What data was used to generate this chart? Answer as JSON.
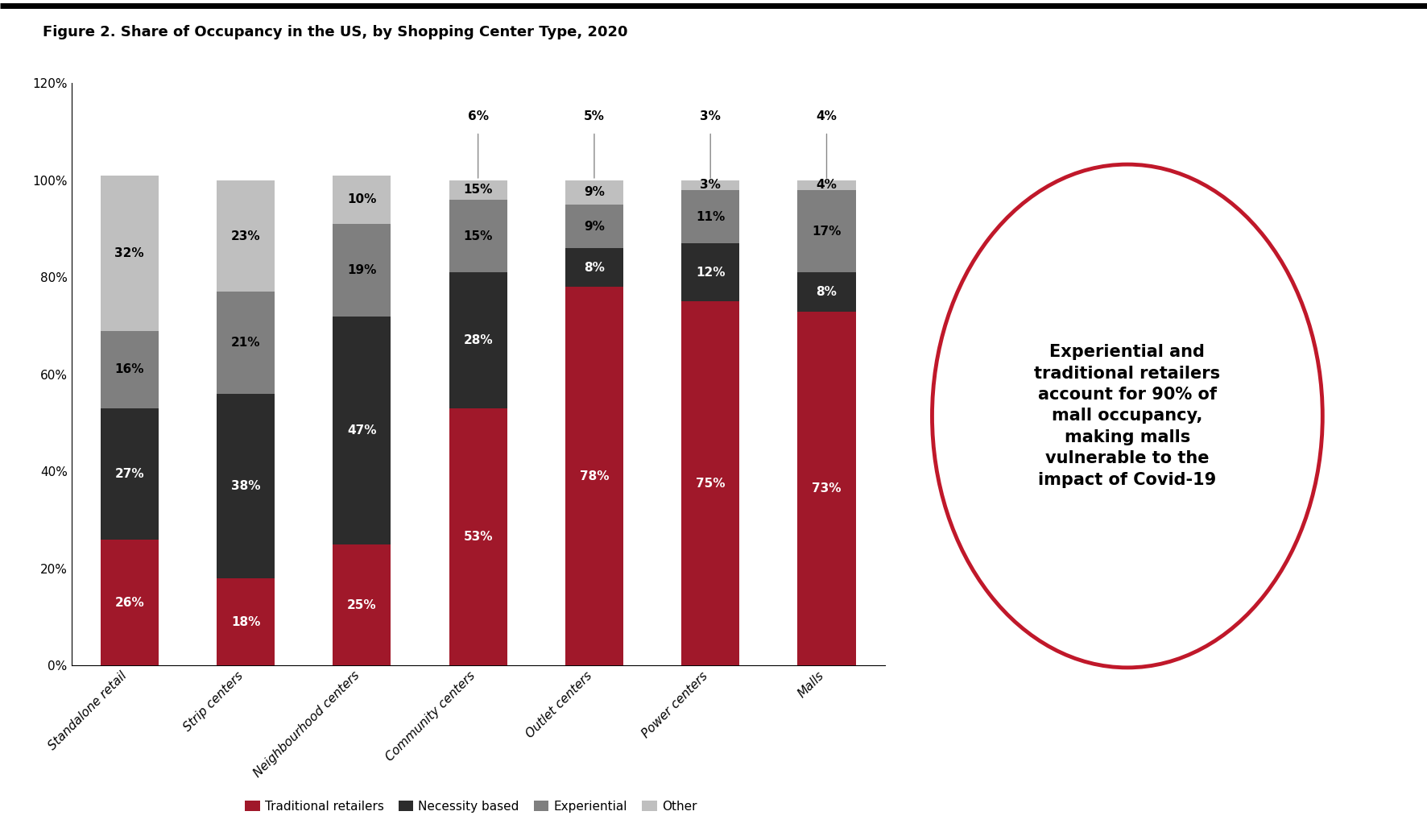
{
  "title": "Figure 2. Share of Occupancy in the US, by Shopping Center Type, 2020",
  "categories": [
    "Standalone retail",
    "Strip centers",
    "Neighbourhood centers",
    "Community centers",
    "Outlet centers",
    "Power centers",
    "Malls"
  ],
  "traditional": [
    26,
    18,
    25,
    53,
    78,
    75,
    73
  ],
  "necessity": [
    27,
    38,
    47,
    28,
    8,
    12,
    8
  ],
  "experiential": [
    16,
    21,
    19,
    15,
    9,
    11,
    17
  ],
  "other": [
    32,
    23,
    10,
    4,
    5,
    2,
    2
  ],
  "other_label": [
    32,
    23,
    10,
    15,
    9,
    3,
    4
  ],
  "above_100": [
    0,
    0,
    0,
    6,
    5,
    3,
    4
  ],
  "colors": {
    "traditional": "#A0182A",
    "necessity": "#2C2C2C",
    "experiential": "#7F7F7F",
    "other": "#BFBFBF"
  },
  "legend_labels": [
    "Traditional retailers",
    "Necessity based",
    "Experiential",
    "Other"
  ],
  "annotation_text": "Experiential and\ntraditional retailers\naccount for 90% of\nmall occupancy,\nmaking malls\nvulnerable to the\nimpact of Covid-19",
  "ylim": [
    0,
    120
  ],
  "yticks": [
    0,
    20,
    40,
    60,
    80,
    100,
    120
  ],
  "yticklabels": [
    "0%",
    "20%",
    "40%",
    "60%",
    "80%",
    "100%",
    "120%"
  ]
}
